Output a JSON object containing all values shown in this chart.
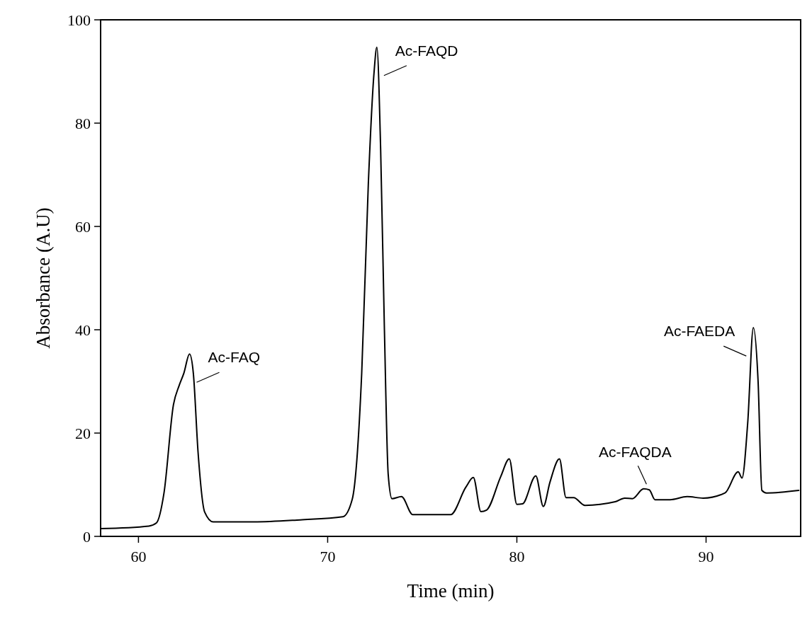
{
  "chart_data": {
    "type": "line",
    "xlabel": "Time (min)",
    "ylabel": "Absorbance (A.U)",
    "xlim": [
      58,
      95
    ],
    "xticks": [
      60,
      70,
      80,
      90
    ],
    "ylim": [
      0,
      100
    ],
    "yticks": [
      0,
      20,
      40,
      60,
      80,
      100
    ],
    "grid": false,
    "marker": "none",
    "line_style": "solid",
    "series": [
      {
        "color": "#000000",
        "x": [
          58.0,
          60.55,
          60.95,
          61.35,
          61.85,
          62.15,
          62.4,
          62.7,
          62.9,
          63.15,
          63.5,
          63.95,
          66.1,
          68.55,
          70.8,
          71.3,
          71.8,
          72.15,
          72.45,
          72.6,
          72.8,
          73.0,
          73.2,
          73.4,
          73.9,
          74.5,
          76.5,
          77.3,
          77.7,
          78.1,
          78.4,
          79.15,
          79.6,
          80.0,
          80.3,
          81.0,
          81.4,
          81.75,
          82.25,
          82.6,
          83.0,
          83.6,
          85.2,
          85.7,
          86.1,
          86.7,
          87.0,
          87.3,
          88.1,
          89.0,
          89.85,
          91.0,
          91.7,
          91.9,
          92.2,
          92.5,
          92.75,
          92.95,
          93.2,
          94.9
        ],
        "values": [
          1.5,
          2.0,
          2.6,
          8.4,
          25.5,
          29.2,
          31.6,
          35.3,
          31.6,
          16.3,
          4.7,
          2.8,
          2.8,
          3.2,
          3.8,
          7.2,
          31.6,
          68.3,
          89.7,
          94.7,
          75,
          40,
          12,
          7.3,
          7.7,
          4.2,
          4.2,
          9.5,
          11.4,
          4.8,
          5.1,
          11.6,
          15.0,
          6.2,
          6.3,
          11.7,
          5.8,
          10.5,
          15.0,
          7.5,
          7.5,
          6.0,
          6.7,
          7.4,
          7.3,
          9.2,
          9.0,
          7.1,
          7.1,
          7.7,
          7.4,
          8.4,
          12.5,
          11.3,
          21.9,
          40.4,
          30,
          8.9,
          8.4,
          8.9
        ]
      }
    ],
    "annotations": [
      {
        "text": "Ac-FAQ",
        "x": 62.7,
        "y": 35.3
      },
      {
        "text": "Ac-FAQD",
        "x": 72.6,
        "y": 94.7
      },
      {
        "text": "Ac-FAQDA",
        "x": 87.0,
        "y": 9.0
      },
      {
        "text": "Ac-FAEDA",
        "x": 92.5,
        "y": 40.4
      }
    ]
  }
}
